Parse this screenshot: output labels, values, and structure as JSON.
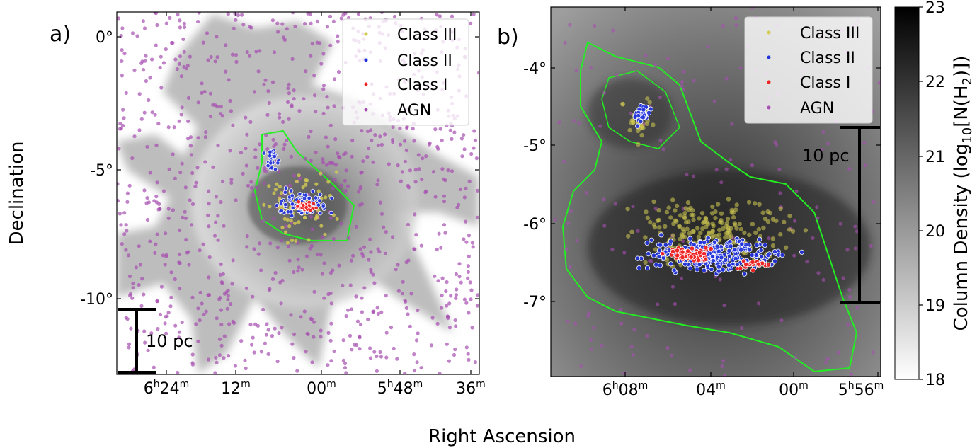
{
  "figure": {
    "xlabel": "Right Ascension",
    "ylabel": "Declination"
  },
  "colors": {
    "class_iii": "#d4cc52",
    "class_ii": "#2233dd",
    "class_i": "#ee2222",
    "agn": "#a64fb0",
    "contour": "#22ee22"
  },
  "chart_data": [
    {
      "type": "scatter",
      "panel_label": "a)",
      "title": "",
      "background": "column density map (grayscale)",
      "ra_ticks": [
        {
          "label": "6h24m",
          "ra_h": 6.4
        },
        {
          "label": "12m",
          "ra_h": 6.2
        },
        {
          "label": "00m",
          "ra_h": 6.0
        },
        {
          "label": "5h48m",
          "ra_h": 5.8
        },
        {
          "label": "36m",
          "ra_h": 5.6
        }
      ],
      "dec_ticks": [
        {
          "label": "0°",
          "dec": 0
        },
        {
          "label": "-5°",
          "dec": -5
        },
        {
          "label": "-10°",
          "dec": -10
        }
      ],
      "xlim_ra_h": [
        6.47,
        5.59
      ],
      "ylim_dec": [
        -13.0,
        0.9
      ],
      "legend": {
        "placement": "top-right",
        "entries": [
          "Class III",
          "Class II",
          "Class I",
          "AGN"
        ]
      },
      "scale_bar": {
        "label": "10 pc"
      },
      "series": [
        {
          "name": "Class III",
          "approx_center_ra_h": 6.05,
          "approx_center_dec": -6.2
        },
        {
          "name": "Class II",
          "approx_center_ra_h": 6.05,
          "approx_center_dec": -6.0
        },
        {
          "name": "Class I",
          "approx_center_ra_h": 6.03,
          "approx_center_dec": -6.45
        },
        {
          "name": "AGN",
          "distribution": "uniform across field"
        }
      ]
    },
    {
      "type": "scatter",
      "panel_label": "b)",
      "title": "",
      "background": "column density map (grayscale)",
      "ra_ticks": [
        {
          "label": "6h08m",
          "ra_h": 6.1333
        },
        {
          "label": "04m",
          "ra_h": 6.0667
        },
        {
          "label": "00m",
          "ra_h": 6.0
        },
        {
          "label": "5h56m",
          "ra_h": 5.9333
        }
      ],
      "dec_ticks": [
        {
          "label": "-4°",
          "dec": -4
        },
        {
          "label": "-5°",
          "dec": -5
        },
        {
          "label": "-6°",
          "dec": -6
        },
        {
          "label": "-7°",
          "dec": -7
        }
      ],
      "xlim_ra_h": [
        6.18,
        5.93
      ],
      "ylim_dec": [
        -8.0,
        -3.3
      ],
      "legend": {
        "placement": "top-right",
        "entries": [
          "Class III",
          "Class II",
          "Class I",
          "AGN"
        ]
      },
      "scale_bar": {
        "label": "10 pc"
      },
      "series": [
        {
          "name": "Class III",
          "approx_center_ra_h": 6.06,
          "approx_center_dec": -6.4
        },
        {
          "name": "Class II",
          "approx_center_ra_h": 6.06,
          "approx_center_dec": -6.4
        },
        {
          "name": "Class I",
          "approx_center_ra_h": 6.05,
          "approx_center_dec": -6.5
        },
        {
          "name": "AGN",
          "distribution": "uniform across field"
        }
      ]
    }
  ],
  "colorbar": {
    "label": "Column Density (log10[N(H2)])",
    "range": [
      18,
      23
    ],
    "ticks": [
      "18",
      "19",
      "20",
      "21",
      "22",
      "23"
    ]
  }
}
